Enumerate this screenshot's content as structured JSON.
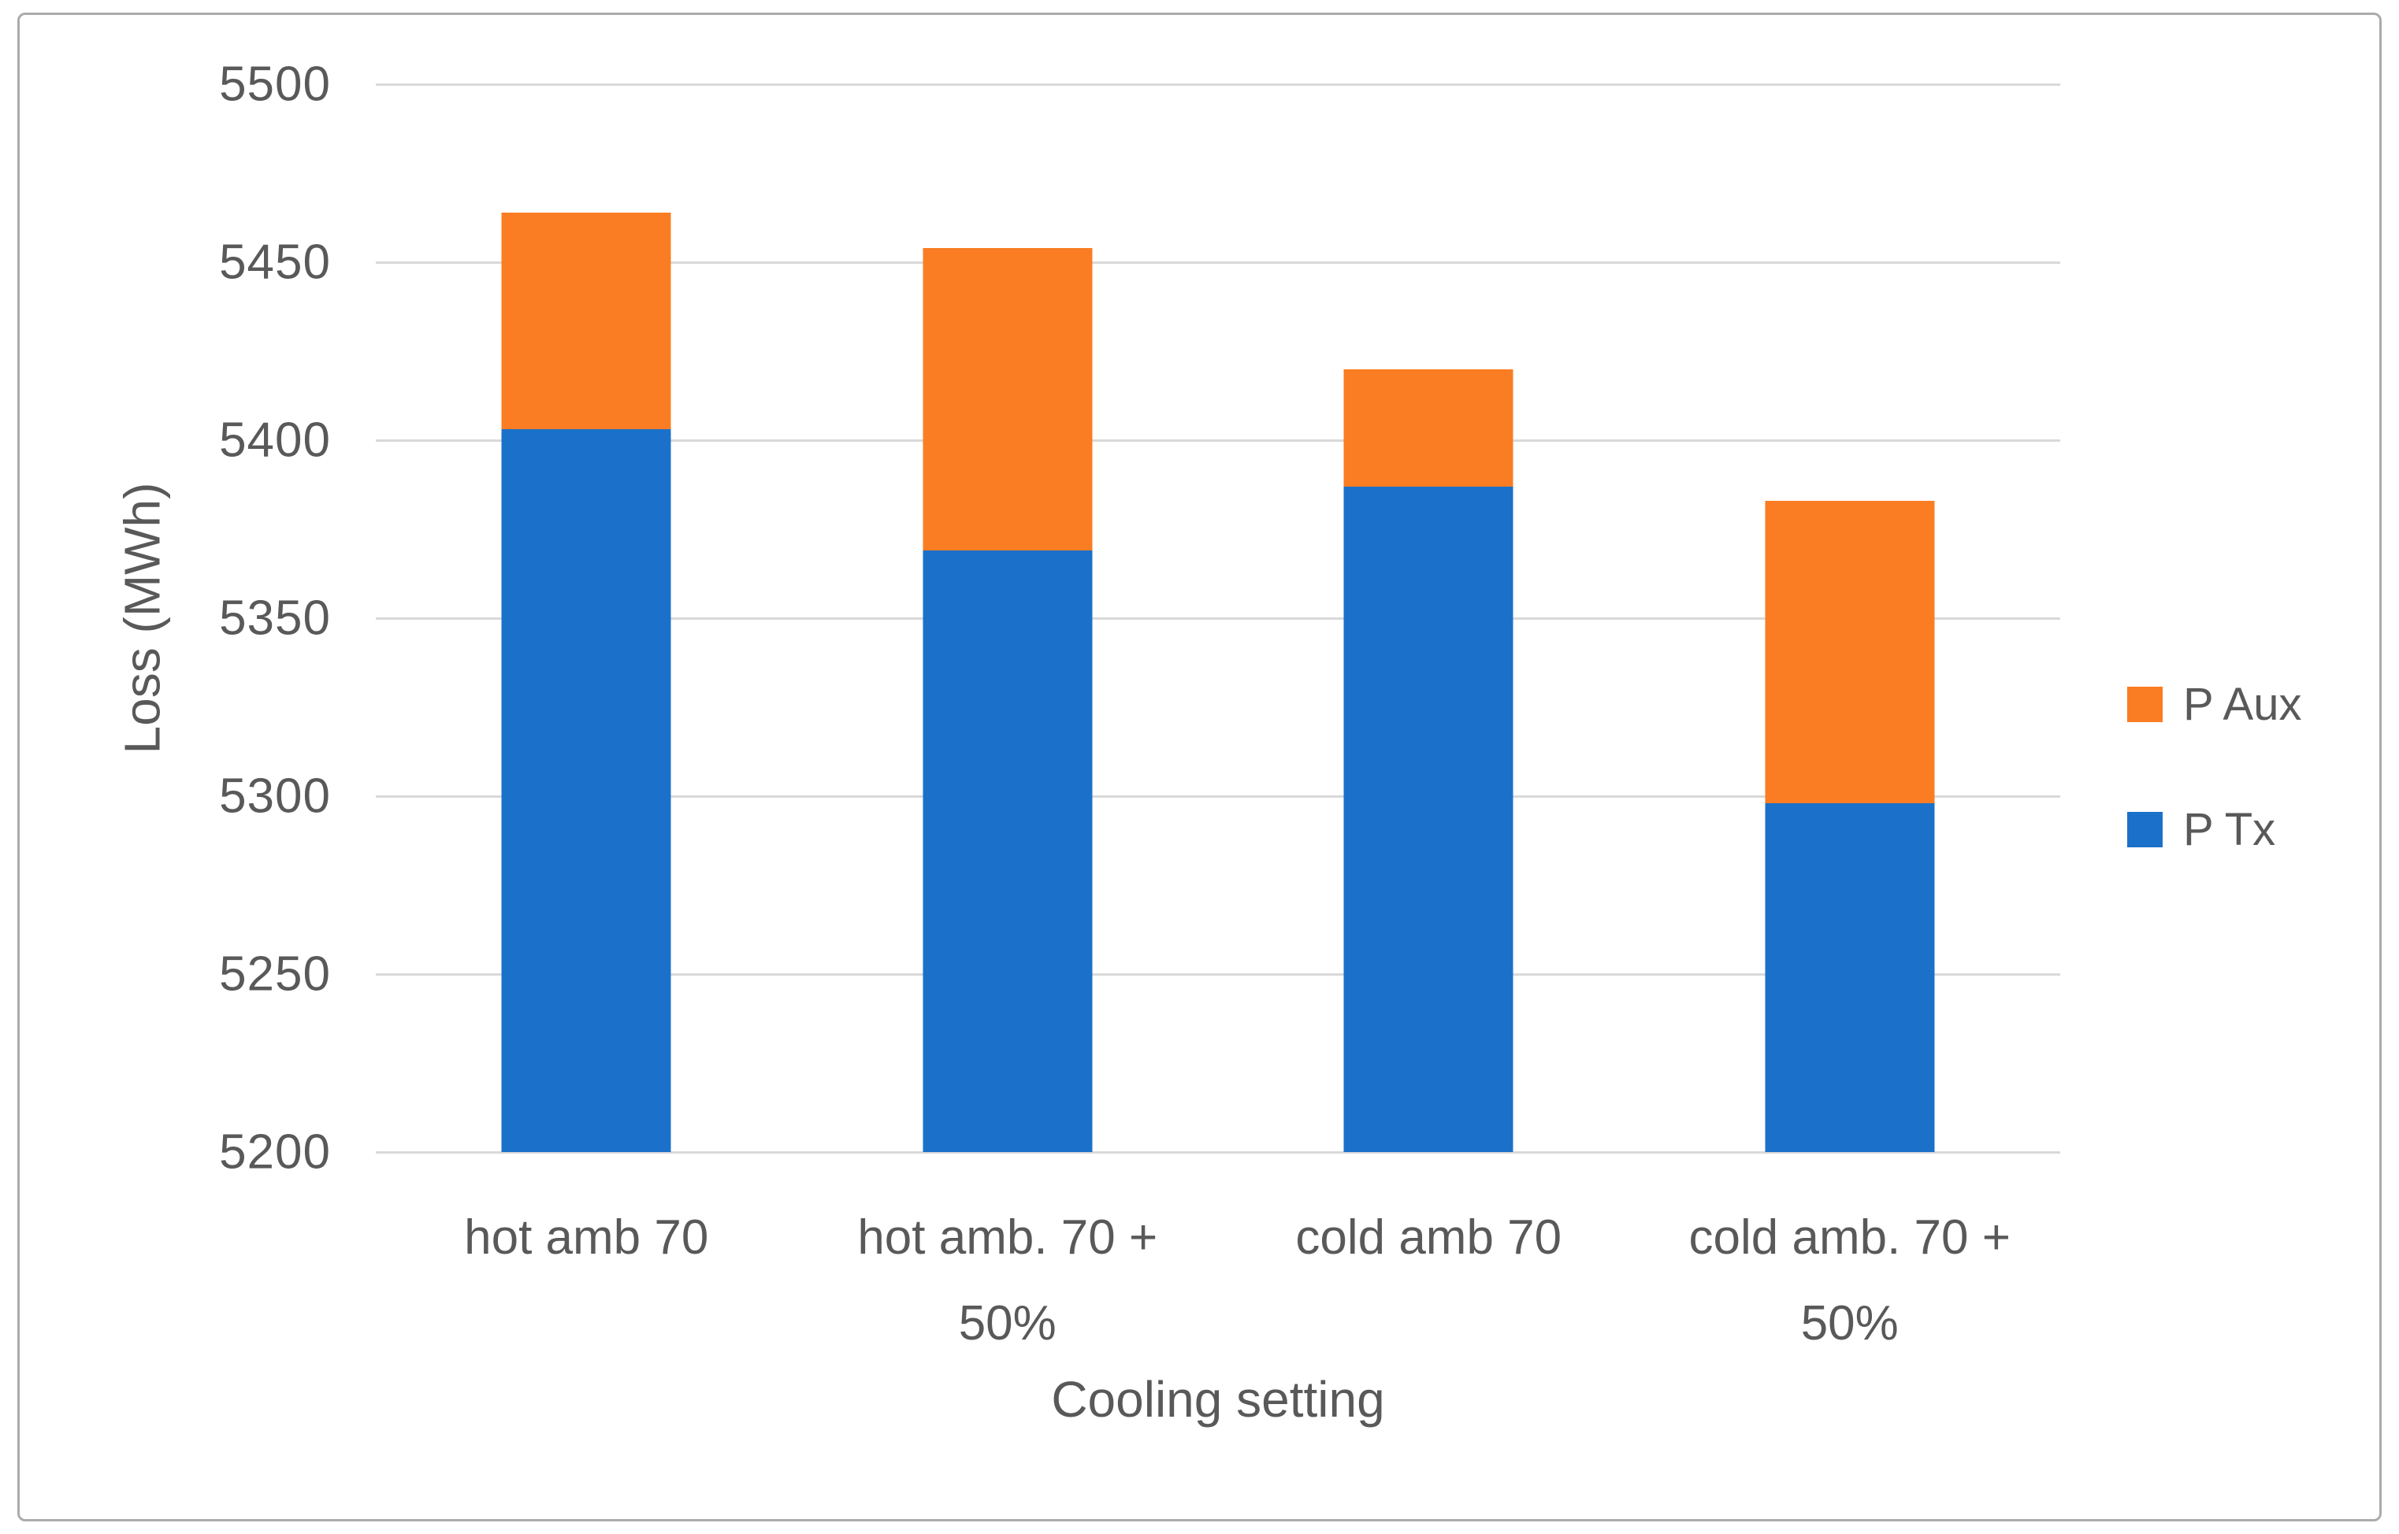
{
  "figure": {
    "background": "#ffffff",
    "border_color": "#ababab"
  },
  "colors": {
    "p_tx_blue": "#1b71c9",
    "p_aux_orange": "#fa7d23",
    "gridline": "#d9d9d9",
    "text": "#595959"
  },
  "chart_data": {
    "type": "bar",
    "stacked": true,
    "title": "",
    "xlabel": "Cooling setting",
    "ylabel": "Loss (MWh)",
    "ylim": [
      5200,
      5500
    ],
    "yticks": [
      5500,
      5450,
      5400,
      5350,
      5300,
      5250,
      5200
    ],
    "grid": true,
    "legend_position": "right",
    "categories": [
      "hot amb 70",
      "hot amb. 70 + 50%",
      "cold amb 70",
      "cold amb. 70 + 50%"
    ],
    "series": [
      {
        "name": "P Tx",
        "color": "#1b71c9",
        "values": [
          5403,
          5369,
          5387,
          5298
        ]
      },
      {
        "name": "P Aux",
        "color": "#fa7d23",
        "values": [
          61,
          85,
          33,
          85
        ]
      }
    ],
    "bars": [
      {
        "category": "hot amb 70",
        "label_lines": [
          "hot amb 70"
        ],
        "p_tx": 5403,
        "p_aux": 61,
        "total": 5464
      },
      {
        "category": "hot amb. 70 + 50%",
        "label_lines": [
          "hot amb. 70 +",
          "50%"
        ],
        "p_tx": 5369,
        "p_aux": 85,
        "total": 5454
      },
      {
        "category": "cold amb 70",
        "label_lines": [
          "cold amb 70"
        ],
        "p_tx": 5387,
        "p_aux": 33,
        "total": 5420
      },
      {
        "category": "cold amb. 70 + 50%",
        "label_lines": [
          "cold amb. 70 +",
          "50%"
        ],
        "p_tx": 5298,
        "p_aux": 85,
        "total": 5383
      }
    ],
    "legend": [
      {
        "label": "P Aux",
        "color": "#fa7d23"
      },
      {
        "label": "P Tx",
        "color": "#1b71c9"
      }
    ]
  }
}
